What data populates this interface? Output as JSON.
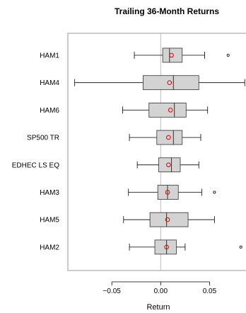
{
  "chart_data": {
    "type": "boxplot",
    "title": "Trailing 36-Month Returns",
    "xlabel": "Return",
    "xlim": [
      -0.095,
      0.088
    ],
    "x_ticks": [
      -0.05,
      0.0,
      0.05
    ],
    "x_tick_labels": [
      "−0.05",
      "0.00",
      "0.05"
    ],
    "reference_line": 0.0,
    "colors": {
      "box_fill": "#d3d3d3",
      "mean_marker": "#e00000",
      "whisker": "#000000",
      "reference": "#bebebe"
    },
    "categories": [
      "HAM1",
      "HAM4",
      "HAM6",
      "SP500 TR",
      "EDHEC LS EQ",
      "HAM3",
      "HAM5",
      "HAM2"
    ],
    "boxes": [
      {
        "name": "HAM1",
        "whisker_low": -0.027,
        "q1": 0.002,
        "median": 0.009,
        "q3": 0.022,
        "whisker_high": 0.045,
        "mean": 0.011,
        "outliers": [
          0.069
        ]
      },
      {
        "name": "HAM4",
        "whisker_low": -0.088,
        "q1": -0.018,
        "median": 0.013,
        "q3": 0.039,
        "whisker_high": 0.086,
        "mean": 0.009,
        "outliers": []
      },
      {
        "name": "HAM6",
        "whisker_low": -0.039,
        "q1": -0.012,
        "median": 0.014,
        "q3": 0.026,
        "whisker_high": 0.048,
        "mean": 0.01,
        "outliers": []
      },
      {
        "name": "SP500 TR",
        "whisker_low": -0.032,
        "q1": -0.004,
        "median": 0.013,
        "q3": 0.022,
        "whisker_high": 0.041,
        "mean": 0.008,
        "outliers": []
      },
      {
        "name": "EDHEC LS EQ",
        "whisker_low": -0.024,
        "q1": -0.002,
        "median": 0.011,
        "q3": 0.02,
        "whisker_high": 0.039,
        "mean": 0.008,
        "outliers": []
      },
      {
        "name": "HAM3",
        "whisker_low": -0.033,
        "q1": -0.003,
        "median": 0.007,
        "q3": 0.018,
        "whisker_high": 0.042,
        "mean": 0.007,
        "outliers": [
          0.055
        ]
      },
      {
        "name": "HAM5",
        "whisker_low": -0.038,
        "q1": -0.011,
        "median": 0.006,
        "q3": 0.028,
        "whisker_high": 0.055,
        "mean": 0.007,
        "outliers": []
      },
      {
        "name": "HAM2",
        "whisker_low": -0.032,
        "q1": -0.006,
        "median": 0.006,
        "q3": 0.016,
        "whisker_high": 0.025,
        "mean": 0.006,
        "outliers": [
          0.082
        ]
      }
    ]
  }
}
